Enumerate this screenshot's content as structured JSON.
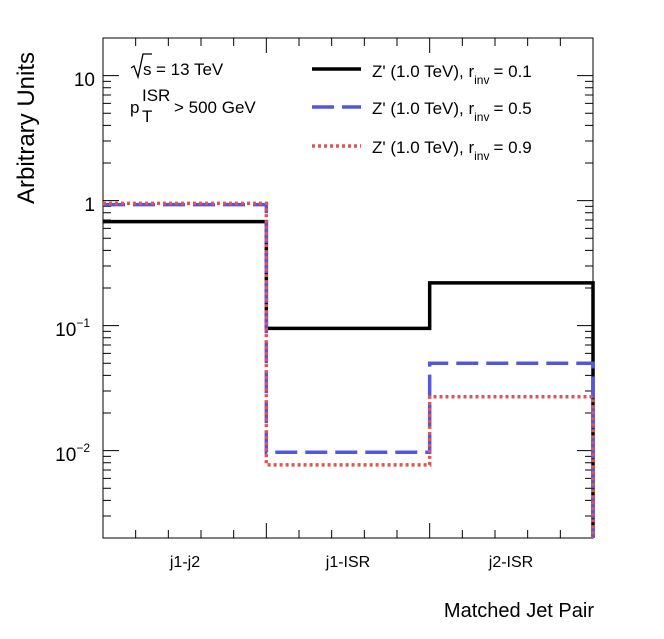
{
  "chart_data": {
    "type": "step-histogram",
    "ylabel": "Arbitrary Units",
    "xlabel": "Matched Jet Pair",
    "yscale": "log",
    "ylim": [
      0.002,
      20
    ],
    "categories": [
      "j1-j2",
      "j1-ISR",
      "j2-ISR"
    ],
    "annotation": {
      "energy_prefix": "s",
      "energy_value": "= 13 TeV",
      "pt_symbol": "p",
      "pt_sup": "ISR",
      "pt_sub": "T",
      "pt_cut": "> 500 GeV"
    },
    "ytick_labels": {
      "t10": "10",
      "t1": "1",
      "t01_base": "10",
      "t01_exp": "−1",
      "t001_base": "10",
      "t001_exp": "−2"
    },
    "series": [
      {
        "name": "Z' (1.0 TeV), r",
        "sub": "inv",
        "suffix": "= 0.1",
        "color": "#000000",
        "style": "solid",
        "values": [
          0.68,
          0.095,
          0.22
        ]
      },
      {
        "name": "Z' (1.0 TeV), r",
        "sub": "inv",
        "suffix": "= 0.5",
        "color": "#5555dd",
        "style": "dashed",
        "values": [
          0.93,
          0.0097,
          0.05
        ]
      },
      {
        "name": "Z' (1.0 TeV), r",
        "sub": "inv",
        "suffix": "= 0.9",
        "color": "#dd5555",
        "style": "dotted",
        "values": [
          0.95,
          0.0077,
          0.027
        ]
      }
    ]
  }
}
